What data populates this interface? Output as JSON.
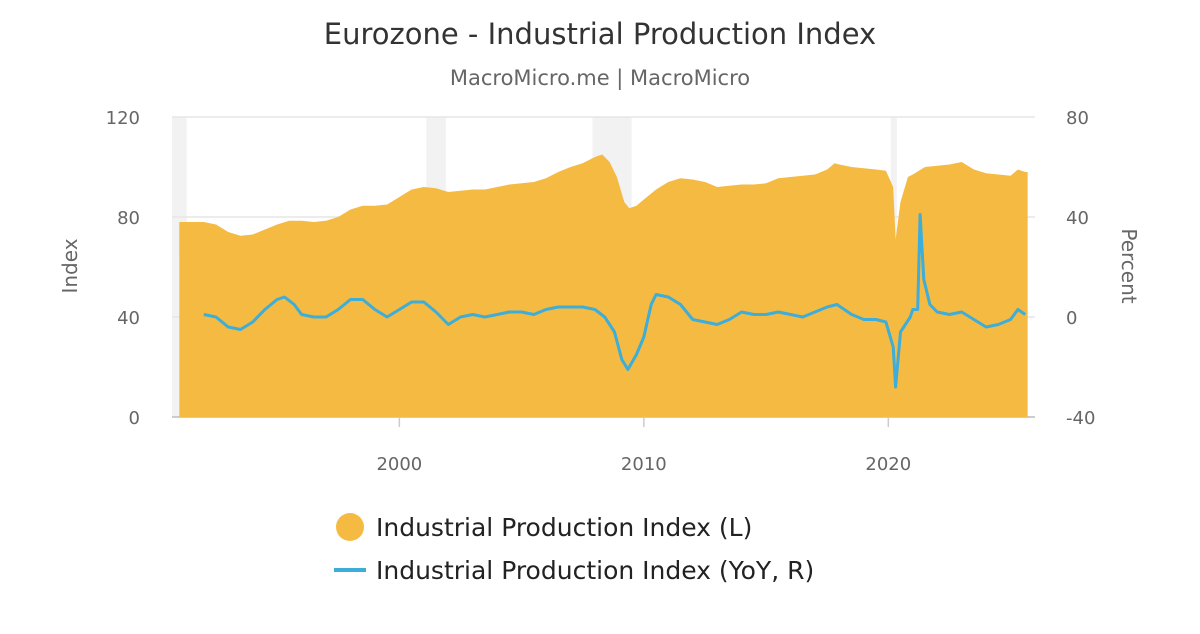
{
  "chart_data": {
    "type": "area+line",
    "title": "Eurozone - Industrial Production Index",
    "subtitle": "MacroMicro.me | MacroMicro",
    "ylabel_left": "Index",
    "ylabel_right": "Percent",
    "ylim_left": [
      0,
      120
    ],
    "ylim_right": [
      -40,
      80
    ],
    "yticks_left": [
      "0",
      "40",
      "80",
      "120"
    ],
    "yticks_right": [
      "-40",
      "0",
      "40",
      "80"
    ],
    "xlim": [
      1990.7,
      2026.0
    ],
    "xticks": [
      "2000",
      "2010",
      "2020"
    ],
    "grid": true,
    "legend_position": "bottom",
    "shaded_periods": [
      [
        1990.7,
        1991.3
      ],
      [
        2001.1,
        2001.9
      ],
      [
        2007.9,
        2009.5
      ],
      [
        2020.1,
        2020.35
      ]
    ],
    "series": [
      {
        "name": "Industrial Production Index (L)",
        "axis": "left",
        "color": "#F5BA42",
        "x": [
          1991.0,
          1992.0,
          1992.5,
          1993.0,
          1993.5,
          1994.0,
          1994.5,
          1995.0,
          1995.5,
          1996.0,
          1996.5,
          1997.0,
          1997.5,
          1998.0,
          1998.5,
          1999.0,
          1999.5,
          2000.0,
          2000.5,
          2001.0,
          2001.5,
          2002.0,
          2002.5,
          2003.0,
          2003.5,
          2004.0,
          2004.5,
          2005.0,
          2005.5,
          2006.0,
          2006.5,
          2007.0,
          2007.5,
          2008.0,
          2008.3,
          2008.6,
          2008.9,
          2009.2,
          2009.4,
          2009.7,
          2010.0,
          2010.5,
          2011.0,
          2011.5,
          2012.0,
          2012.5,
          2013.0,
          2013.5,
          2014.0,
          2014.5,
          2015.0,
          2015.5,
          2016.0,
          2016.5,
          2017.0,
          2017.5,
          2017.8,
          2018.0,
          2018.5,
          2019.0,
          2019.5,
          2019.9,
          2020.2,
          2020.3,
          2020.5,
          2020.8,
          2021.0,
          2021.5,
          2022.0,
          2022.5,
          2023.0,
          2023.5,
          2024.0,
          2024.5,
          2025.0,
          2025.3,
          2025.6
        ],
        "values": [
          78,
          78,
          77,
          74,
          72.5,
          73,
          75,
          77,
          78.5,
          78.5,
          78,
          78.5,
          80,
          83,
          84.5,
          84.5,
          85,
          88,
          91,
          92,
          91.5,
          90,
          90.5,
          91,
          91,
          92,
          93,
          93.5,
          94,
          95.5,
          98,
          100,
          101.5,
          104,
          105,
          102,
          96,
          86,
          83.5,
          84.5,
          87,
          91,
          94,
          95.5,
          95,
          94,
          92,
          92.5,
          93,
          93,
          93.5,
          95.5,
          96,
          96.5,
          97,
          99,
          101.5,
          101,
          100,
          99.5,
          99,
          98.5,
          92,
          71,
          86,
          96,
          97,
          100,
          100.5,
          101,
          102,
          99,
          97.5,
          97,
          96.5,
          99,
          98
        ]
      },
      {
        "name": "Industrial Production Index (YoY, R)",
        "axis": "right",
        "color": "#3DADD9",
        "x": [
          1992.0,
          1992.5,
          1993.0,
          1993.5,
          1994.0,
          1994.5,
          1995.0,
          1995.3,
          1995.7,
          1996.0,
          1996.5,
          1997.0,
          1997.5,
          1998.0,
          1998.5,
          1999.0,
          1999.5,
          2000.0,
          2000.5,
          2001.0,
          2001.5,
          2002.0,
          2002.5,
          2003.0,
          2003.5,
          2004.0,
          2004.5,
          2005.0,
          2005.5,
          2006.0,
          2006.5,
          2007.0,
          2007.5,
          2008.0,
          2008.4,
          2008.8,
          2009.1,
          2009.35,
          2009.7,
          2010.0,
          2010.3,
          2010.5,
          2011.0,
          2011.5,
          2012.0,
          2012.5,
          2013.0,
          2013.5,
          2014.0,
          2014.5,
          2015.0,
          2015.5,
          2016.0,
          2016.5,
          2017.0,
          2017.5,
          2017.9,
          2018.5,
          2019.0,
          2019.5,
          2019.9,
          2020.2,
          2020.3,
          2020.5,
          2020.9,
          2021.0,
          2021.2,
          2021.3,
          2021.45,
          2021.7,
          2022.0,
          2022.5,
          2023.0,
          2023.5,
          2024.0,
          2024.5,
          2025.0,
          2025.3,
          2025.6
        ],
        "values": [
          1,
          0,
          -4,
          -5,
          -2,
          3,
          7,
          8,
          5,
          1,
          0,
          0,
          3,
          7,
          7,
          3,
          0,
          3,
          6,
          6,
          2,
          -3,
          0,
          1,
          0,
          1,
          2,
          2,
          1,
          3,
          4,
          4,
          4,
          3,
          0,
          -6,
          -17,
          -21,
          -15,
          -8,
          5,
          9,
          8,
          5,
          -1,
          -2,
          -3,
          -1,
          2,
          1,
          1,
          2,
          1,
          0,
          2,
          4,
          5,
          1,
          -1,
          -1,
          -2,
          -12,
          -28,
          -6,
          0,
          3,
          3,
          41,
          15,
          5,
          2,
          1,
          2,
          -1,
          -4,
          -3,
          -1,
          3,
          1
        ]
      }
    ]
  }
}
